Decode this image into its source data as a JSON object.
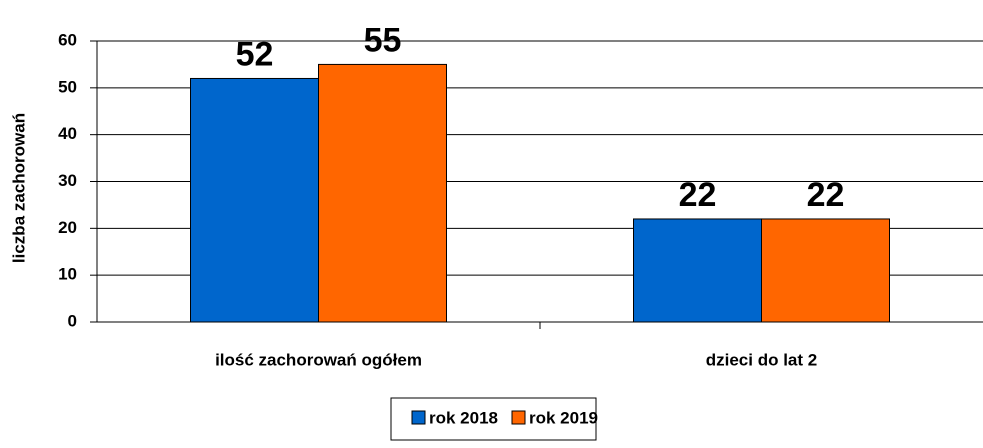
{
  "chart_data": {
    "type": "bar",
    "y_label": "liczba zachorowań",
    "categories": [
      "ilość zachorowań ogółem",
      "dzieci do lat 2"
    ],
    "series": [
      {
        "name": "rok 2018",
        "color": "#0066cc",
        "values": [
          52,
          22
        ]
      },
      {
        "name": "rok 2019",
        "color": "#ff6600",
        "values": [
          55,
          22
        ]
      }
    ],
    "ylim": [
      0,
      60
    ],
    "yticks": [
      0,
      10,
      20,
      30,
      40,
      50,
      60
    ],
    "grid": true,
    "legend": "bottom"
  }
}
